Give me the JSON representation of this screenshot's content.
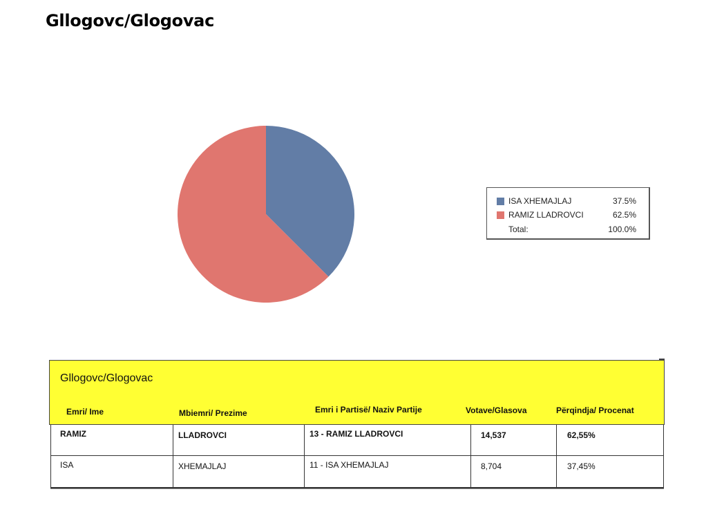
{
  "page_title": "Gllogovc/Glogovac",
  "colors": {
    "series_blue": "#627da6",
    "series_red": "#e0766f",
    "table_header_bg": "#ffff33"
  },
  "chart_data": {
    "type": "pie",
    "slices": [
      {
        "name": "ISA XHEMAJLAJ",
        "value": 37.5,
        "label": "37.5%",
        "color": "#627da6"
      },
      {
        "name": "RAMIZ LLADROVCI",
        "value": 62.5,
        "label": "62.5%",
        "color": "#e0766f"
      }
    ],
    "total": {
      "name": "Total:",
      "label": "100.0%"
    },
    "legend_position": "right"
  },
  "table": {
    "title": "Gllogovc/Glogovac",
    "headers": [
      "Emri/ Ime",
      "Mbiemri/ Prezime",
      "Emri i Partisë/ Naziv Partije",
      "Votave/Glasova",
      "Përqindja/ Procenat"
    ],
    "rows": [
      [
        "RAMIZ",
        "LLADROVCI",
        "13 - RAMIZ LLADROVCI",
        "14,537",
        "62,55%"
      ],
      [
        "ISA",
        "XHEMAJLAJ",
        "11 - ISA XHEMAJLAJ",
        "8,704",
        "37,45%"
      ]
    ]
  }
}
